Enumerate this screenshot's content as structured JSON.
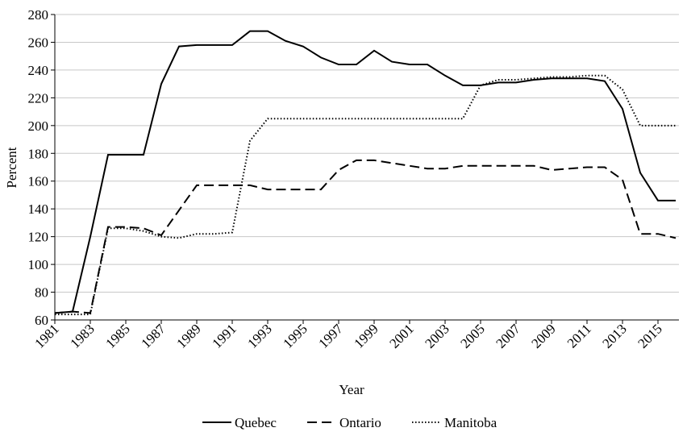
{
  "chart_data": {
    "type": "line",
    "x_label": "Year",
    "y_label": "Percent",
    "x": [
      1981,
      1982,
      1983,
      1984,
      1985,
      1986,
      1987,
      1988,
      1989,
      1990,
      1991,
      1992,
      1993,
      1994,
      1995,
      1996,
      1997,
      1998,
      1999,
      2000,
      2001,
      2002,
      2003,
      2004,
      2005,
      2006,
      2007,
      2008,
      2009,
      2010,
      2011,
      2012,
      2013,
      2014,
      2015,
      2016
    ],
    "series": [
      {
        "name": "Quebec",
        "color": "#000000",
        "dash": "solid",
        "values": [
          65,
          66,
          120,
          179,
          179,
          179,
          230,
          257,
          258,
          258,
          258,
          268,
          268,
          261,
          257,
          249,
          244,
          244,
          254,
          246,
          244,
          244,
          236,
          229,
          229,
          231,
          231,
          233,
          234,
          234,
          234,
          232,
          212,
          166,
          146,
          146
        ]
      },
      {
        "name": "Ontario",
        "color": "#000000",
        "dash": "dashed",
        "values": [
          65,
          66,
          65,
          127,
          127,
          126,
          121,
          139,
          157,
          157,
          157,
          157,
          154,
          154,
          154,
          154,
          168,
          175,
          175,
          173,
          171,
          169,
          169,
          171,
          171,
          171,
          171,
          171,
          168,
          169,
          170,
          170,
          161,
          122,
          122,
          119
        ]
      },
      {
        "name": "Manitoba",
        "color": "#000000",
        "dash": "dotted",
        "values": [
          64,
          64,
          64,
          126,
          126,
          124,
          120,
          119,
          122,
          122,
          123,
          189,
          205,
          205,
          205,
          205,
          205,
          205,
          205,
          205,
          205,
          205,
          205,
          205,
          229,
          233,
          233,
          234,
          235,
          235,
          236,
          236,
          226,
          200,
          200,
          200
        ]
      }
    ],
    "xlim": [
      1981,
      2016
    ],
    "xticks": [
      1981,
      1983,
      1985,
      1987,
      1989,
      1991,
      1993,
      1995,
      1997,
      1999,
      2001,
      2003,
      2005,
      2007,
      2009,
      2011,
      2013,
      2015
    ],
    "ylim": [
      60,
      280
    ],
    "yticks": [
      60,
      80,
      100,
      120,
      140,
      160,
      180,
      200,
      220,
      240,
      260,
      280
    ],
    "grid": true,
    "legend_position": "bottom"
  }
}
